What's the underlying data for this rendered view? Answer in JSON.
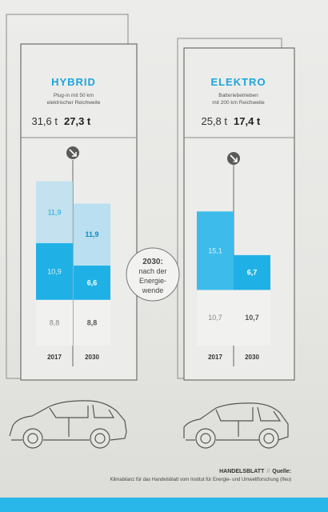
{
  "chart_data": {
    "type": "bar",
    "stacked": true,
    "units": "t",
    "panels": [
      {
        "title": "HYBRID",
        "subtitle_lines": [
          "Plug-in mit 50 km",
          "elektrischer Reichweite"
        ],
        "total_2017": "31,6 t",
        "total_2030": "27,3 t",
        "categories": [
          "2017",
          "2030"
        ],
        "series": [
          {
            "values": [
              8.8,
              8.8
            ],
            "labels": [
              "8,8",
              "8,8"
            ]
          },
          {
            "values": [
              10.9,
              6.6
            ],
            "labels": [
              "10,9",
              "6,6"
            ]
          },
          {
            "values": [
              11.9,
              11.9
            ],
            "labels": [
              "11,9",
              "11,9"
            ]
          }
        ]
      },
      {
        "title": "ELEKTRO",
        "subtitle_lines": [
          "Batteriebetrieben",
          "mit 200 km Reichweite"
        ],
        "total_2017": "25,8 t",
        "total_2030": "17,4 t",
        "categories": [
          "2017",
          "2030"
        ],
        "series": [
          {
            "values": [
              10.7,
              10.7
            ],
            "labels": [
              "10,7",
              "10,7"
            ]
          },
          {
            "values": [
              15.1,
              6.7
            ],
            "labels": [
              "15,1",
              "6,7"
            ]
          }
        ]
      }
    ],
    "center_label_lines": [
      "2030:",
      "nach der",
      "Energie-",
      "wende"
    ],
    "colors": {
      "grey_segment": "#f1f1ef",
      "cyan_dark": "#1fb1e6",
      "cyan_mid": "#3dbbea",
      "cyan_light": "#b9dff0",
      "cyan_text": "#1aa6dd",
      "bold_text": "#0f8cc4"
    }
  },
  "source": {
    "publisher": "HANDELSBLATT",
    "separator": "//",
    "label": "Quelle:",
    "line2": "Klimabilanz für das Handelsblatt vom Institut für Energie- und Umweltforschung (Ifeu)"
  }
}
